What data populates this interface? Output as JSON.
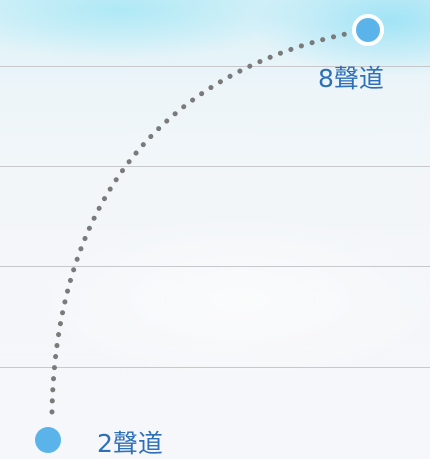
{
  "labels": {
    "end": "8聲道",
    "start": "2聲道"
  },
  "colors": {
    "dot_fill": "#5ab4ea",
    "dot_ring": "#ffffff",
    "path_dots": "#7a7a7a",
    "label_text": "#2f6fb8",
    "grid_line": "#c6c8cb"
  }
}
